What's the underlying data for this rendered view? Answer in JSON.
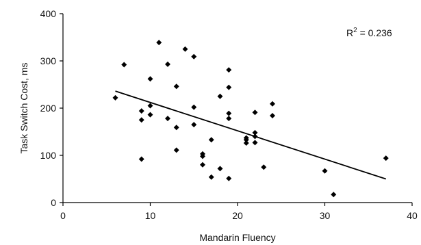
{
  "chart_data": {
    "type": "scatter",
    "xlabel": "Mandarin Fluency",
    "ylabel": "Task Switch Cost, ms",
    "xlim": [
      0,
      40
    ],
    "ylim": [
      0,
      400
    ],
    "x_ticks": [
      "0",
      "10",
      "20",
      "30",
      "40"
    ],
    "y_ticks": [
      "0",
      "100",
      "200",
      "300",
      "400"
    ],
    "grid": false,
    "annotation": {
      "prefix": "R",
      "superscript": "2",
      "suffix": " = 0.236"
    },
    "trendline": {
      "x": [
        6,
        37
      ],
      "y": [
        236,
        50
      ]
    },
    "series": [
      {
        "marker": "diamond",
        "color": "#000000",
        "points": [
          [
            6,
            222
          ],
          [
            7,
            292
          ],
          [
            9,
            92
          ],
          [
            9,
            175
          ],
          [
            9,
            194
          ],
          [
            10,
            262
          ],
          [
            10,
            205
          ],
          [
            10,
            186
          ],
          [
            11,
            339
          ],
          [
            12,
            293
          ],
          [
            12,
            178
          ],
          [
            13,
            246
          ],
          [
            13,
            159
          ],
          [
            13,
            111
          ],
          [
            14,
            325
          ],
          [
            15,
            309
          ],
          [
            15,
            202
          ],
          [
            15,
            165
          ],
          [
            16,
            103
          ],
          [
            16,
            98
          ],
          [
            16,
            80
          ],
          [
            17,
            133
          ],
          [
            17,
            54
          ],
          [
            18,
            225
          ],
          [
            18,
            72
          ],
          [
            19,
            281
          ],
          [
            19,
            244
          ],
          [
            19,
            189
          ],
          [
            19,
            178
          ],
          [
            19,
            51
          ],
          [
            21,
            137
          ],
          [
            21,
            133
          ],
          [
            21,
            126
          ],
          [
            22,
            191
          ],
          [
            22,
            148
          ],
          [
            22,
            140
          ],
          [
            22,
            127
          ],
          [
            23,
            75
          ],
          [
            24,
            209
          ],
          [
            24,
            184
          ],
          [
            30,
            67
          ],
          [
            31,
            17
          ],
          [
            37,
            94
          ]
        ]
      }
    ]
  }
}
